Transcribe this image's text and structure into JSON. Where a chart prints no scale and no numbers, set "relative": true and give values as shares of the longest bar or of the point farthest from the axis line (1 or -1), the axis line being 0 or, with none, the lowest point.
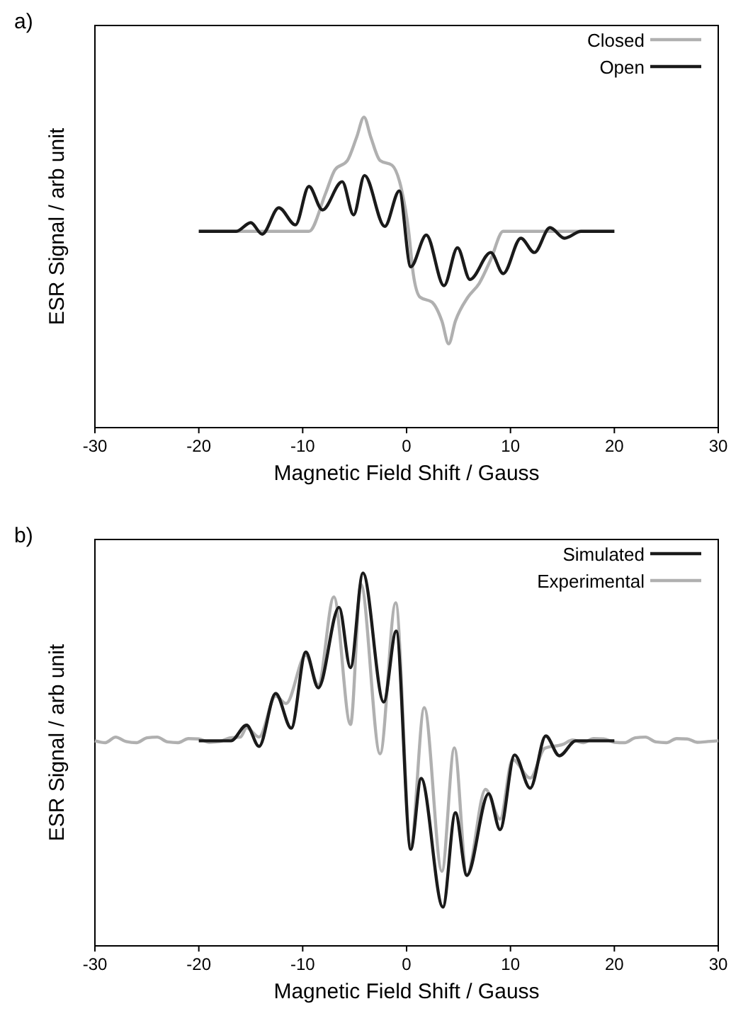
{
  "chart_data": [
    {
      "type": "line",
      "title": "a)",
      "xlabel": "Magnetic Field Shift / Gauss",
      "ylabel": "ESR Signal / arb unit",
      "relative": true,
      "xlim": [
        -30,
        30
      ],
      "xticks": [
        -30,
        -20,
        -10,
        0,
        10,
        20,
        30
      ],
      "legend": "top right",
      "line_style": "solid",
      "marker": "none",
      "series": [
        {
          "name": "Closed",
          "color": "#b0b0b0",
          "x": [
            -20,
            -9.4,
            -7.8,
            -6.9,
            -5.7,
            -4.8,
            -4.1,
            -3.45,
            -2.55,
            -1.4,
            -0.5,
            0.2,
            0.64,
            1.3,
            2.45,
            3.4,
            4.05,
            4.7,
            5.9,
            7.0,
            8.1,
            9.3,
            20
          ],
          "values": [
            0.632,
            0.632,
            0.754,
            0.83,
            0.86,
            0.936,
            1,
            0.936,
            0.86,
            0.845,
            0.769,
            0.632,
            0.496,
            0.42,
            0.404,
            0.343,
            0.27,
            0.343,
            0.42,
            0.465,
            0.541,
            0.632,
            0.632
          ]
        },
        {
          "name": "Open",
          "color": "#1a1a1a",
          "x": [
            -20,
            -16.4,
            -15.0,
            -13.9,
            -12.3,
            -10.7,
            -9.4,
            -8.1,
            -6.2,
            -5.1,
            -4.05,
            -2.1,
            -0.7,
            0.4,
            1.9,
            3.6,
            4.9,
            6.1,
            8.1,
            9.3,
            11.0,
            12.3,
            13.8,
            15.2,
            16.8,
            20
          ],
          "values": [
            0.632,
            0.632,
            0.66,
            0.623,
            0.708,
            0.653,
            0.777,
            0.701,
            0.792,
            0.685,
            0.812,
            0.648,
            0.762,
            0.518,
            0.62,
            0.457,
            0.579,
            0.477,
            0.564,
            0.496,
            0.61,
            0.564,
            0.644,
            0.61,
            0.632,
            0.632
          ]
        }
      ]
    },
    {
      "type": "line",
      "title": "b)",
      "xlabel": "Magnetic Field Shift / Gauss",
      "ylabel": "ESR Signal / arb unit",
      "relative": true,
      "xlim": [
        -30,
        30
      ],
      "xticks": [
        -30,
        -20,
        -10,
        0,
        10,
        20,
        30
      ],
      "legend": "top right",
      "line_style": "solid",
      "marker": "none",
      "series": [
        {
          "name": "Simulated",
          "color": "#1a1a1a",
          "x": [
            -20,
            -16.9,
            -15.4,
            -14.2,
            -12.6,
            -11.1,
            -9.7,
            -8.5,
            -6.5,
            -5.4,
            -4.2,
            -2.2,
            -1.0,
            0.4,
            1.4,
            3.5,
            4.7,
            5.8,
            7.9,
            9.0,
            10.4,
            11.9,
            13.4,
            14.7,
            16.3,
            20
          ],
          "values": [
            0.55,
            0.55,
            0.592,
            0.535,
            0.677,
            0.584,
            0.788,
            0.692,
            0.908,
            0.746,
            1,
            0.654,
            0.844,
            0.259,
            0.449,
            0.104,
            0.357,
            0.189,
            0.408,
            0.312,
            0.512,
            0.423,
            0.563,
            0.51,
            0.55,
            0.55
          ]
        },
        {
          "name": "Experimental",
          "color": "#b0b0b0",
          "x": [
            -30,
            -29,
            -28,
            -27,
            -26,
            -25,
            -24,
            -23,
            -22,
            -21,
            -20,
            -19,
            -18,
            -17,
            -16,
            -15.4,
            -14.2,
            -12.6,
            -11.6,
            -9.7,
            -8.5,
            -7.0,
            -5.4,
            -4.4,
            -2.55,
            -1.05,
            0.4,
            1.7,
            3.4,
            4.6,
            5.8,
            7.6,
            9.0,
            10.2,
            11.9,
            13.3,
            15,
            16,
            17,
            18,
            19,
            20,
            21,
            22,
            23,
            24,
            25,
            26,
            27,
            28,
            29,
            30
          ],
          "values": [
            0.55,
            0.545,
            0.56,
            0.548,
            0.545,
            0.558,
            0.56,
            0.547,
            0.545,
            0.556,
            0.555,
            0.546,
            0.548,
            0.558,
            0.56,
            0.585,
            0.56,
            0.67,
            0.65,
            0.78,
            0.7,
            0.936,
            0.594,
            0.97,
            0.515,
            0.92,
            0.27,
            0.639,
            0.2,
            0.531,
            0.19,
            0.42,
            0.34,
            0.5,
            0.45,
            0.53,
            0.54,
            0.552,
            0.545,
            0.556,
            0.555,
            0.546,
            0.545,
            0.558,
            0.56,
            0.547,
            0.545,
            0.556,
            0.555,
            0.546,
            0.548,
            0.55
          ]
        }
      ]
    }
  ]
}
